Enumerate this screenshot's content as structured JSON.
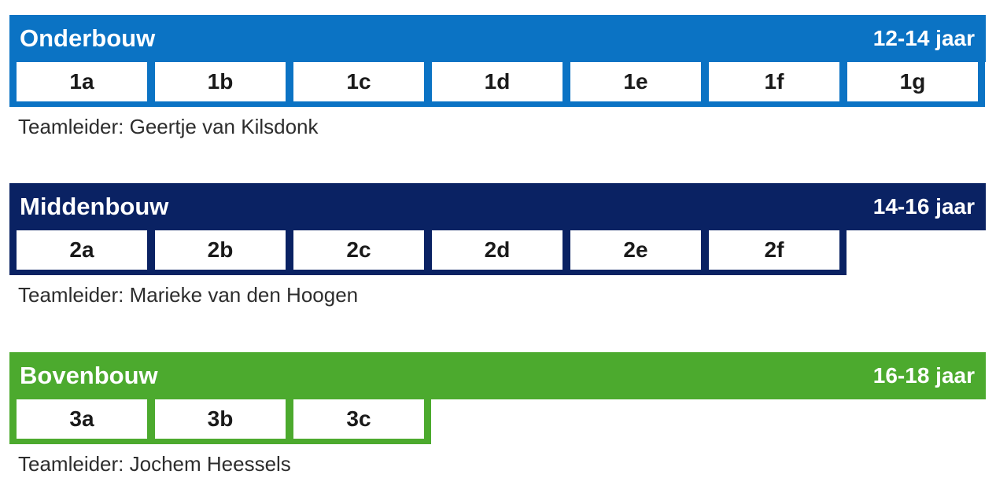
{
  "colors": {
    "onderbouw": "#0b73c4",
    "middenbouw": "#0a2263",
    "bovenbouw": "#4caa2e",
    "cell_background": "#ffffff",
    "header_text": "#ffffff",
    "cell_text": "#1a1a1a",
    "body_text": "#2d2d2d"
  },
  "sections": [
    {
      "title": "Onderbouw",
      "age_range": "12-14 jaar",
      "classes": [
        "1a",
        "1b",
        "1c",
        "1d",
        "1e",
        "1f",
        "1g"
      ],
      "teamleider": "Teamleider: Geertje van Kilsdonk"
    },
    {
      "title": "Middenbouw",
      "age_range": "14-16 jaar",
      "classes": [
        "2a",
        "2b",
        "2c",
        "2d",
        "2e",
        "2f"
      ],
      "teamleider": "Teamleider: Marieke van den Hoogen"
    },
    {
      "title": "Bovenbouw",
      "age_range": "16-18 jaar",
      "classes": [
        "3a",
        "3b",
        "3c"
      ],
      "teamleider": "Teamleider: Jochem Heessels"
    }
  ]
}
